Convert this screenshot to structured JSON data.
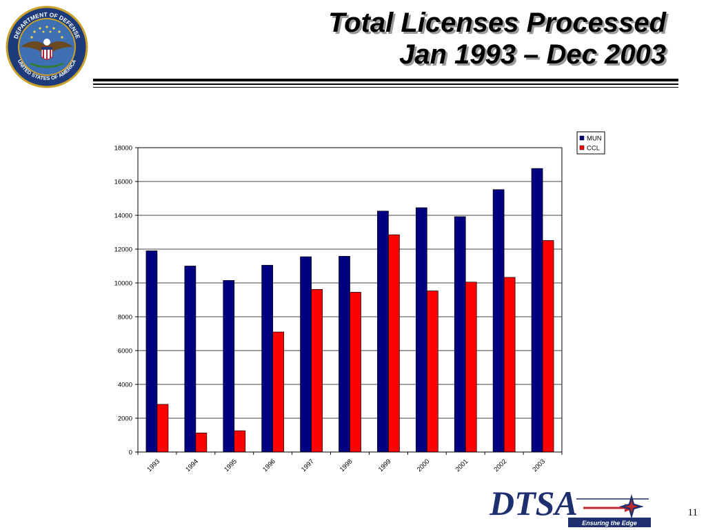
{
  "header": {
    "title_line1": "Total Licenses Processed",
    "title_line2": "Jan 1993 – Dec 2003",
    "seal_text_top": "DEPARTMENT OF DEFENSE",
    "seal_text_bottom": "UNITED STATES OF AMERICA"
  },
  "chart_data": {
    "type": "bar",
    "title": "",
    "xlabel": "",
    "ylabel": "",
    "categories": [
      "1993",
      "1994",
      "1995",
      "1996",
      "1997",
      "1998",
      "1999",
      "2000",
      "2001",
      "2002",
      "2003"
    ],
    "series": [
      {
        "name": "MUN",
        "color": "#000080",
        "values": [
          11900,
          11000,
          10150,
          11050,
          11550,
          11580,
          14250,
          14450,
          13920,
          15520,
          16770
        ]
      },
      {
        "name": "CCL",
        "color": "#ff0000",
        "values": [
          2820,
          1130,
          1260,
          7100,
          9620,
          9450,
          12850,
          9530,
          10050,
          10330,
          12510
        ]
      }
    ],
    "ylim": [
      0,
      18000
    ],
    "yticks": [
      0,
      2000,
      4000,
      6000,
      8000,
      10000,
      12000,
      14000,
      16000,
      18000
    ],
    "grid": true,
    "legend_position": "top-right"
  },
  "footer": {
    "logo_text": "DTSA",
    "logo_tagline": "Ensuring the Edge",
    "page_number": "11"
  }
}
